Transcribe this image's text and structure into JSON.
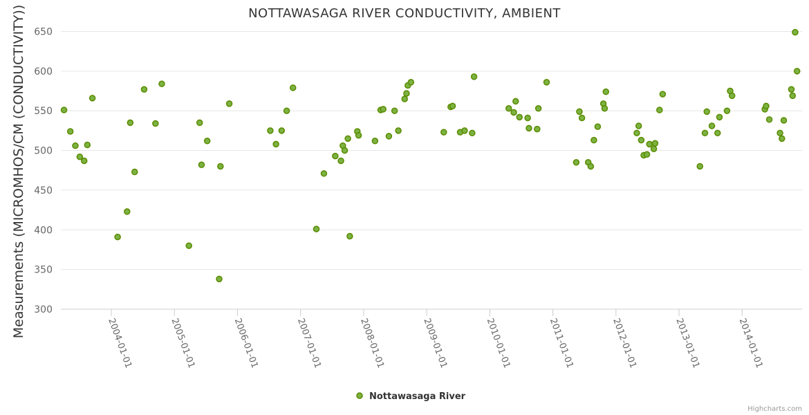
{
  "chart_data": {
    "type": "scatter",
    "title": "NOTTAWASAGA RIVER CONDUCTIVITY, AMBIENT",
    "xlabel": "",
    "ylabel": "Measurements (MICROMHOS/CM (CONDUCTIVITY))",
    "ylim": [
      300,
      660
    ],
    "yticks": [
      300,
      350,
      400,
      450,
      500,
      550,
      600,
      650
    ],
    "xlim": [
      2003.2,
      2014.95
    ],
    "xticks": [
      {
        "label": "2004-01-01",
        "value": 2004
      },
      {
        "label": "2005-01-01",
        "value": 2005
      },
      {
        "label": "2006-01-01",
        "value": 2006
      },
      {
        "label": "2007-01-01",
        "value": 2007
      },
      {
        "label": "2008-01-01",
        "value": 2008
      },
      {
        "label": "2009-01-01",
        "value": 2009
      },
      {
        "label": "2010-01-01",
        "value": 2010
      },
      {
        "label": "2011-01-01",
        "value": 2011
      },
      {
        "label": "2012-01-01",
        "value": 2012
      },
      {
        "label": "2013-01-01",
        "value": 2013
      },
      {
        "label": "2014-01-01",
        "value": 2014
      }
    ],
    "grid": true,
    "legend_position": "bottom-center",
    "series": [
      {
        "name": "Nottawasaga River",
        "color": "#7CB342",
        "stroke": "#5a8a00",
        "points": [
          [
            2003.25,
            551
          ],
          [
            2003.35,
            524
          ],
          [
            2003.43,
            506
          ],
          [
            2003.5,
            492
          ],
          [
            2003.57,
            487
          ],
          [
            2003.62,
            507
          ],
          [
            2003.7,
            566
          ],
          [
            2004.1,
            391
          ],
          [
            2004.25,
            423
          ],
          [
            2004.3,
            535
          ],
          [
            2004.37,
            473
          ],
          [
            2004.52,
            577
          ],
          [
            2004.7,
            534
          ],
          [
            2004.8,
            584
          ],
          [
            2005.23,
            380
          ],
          [
            2005.4,
            535
          ],
          [
            2005.43,
            482
          ],
          [
            2005.52,
            512
          ],
          [
            2005.71,
            338
          ],
          [
            2005.73,
            480
          ],
          [
            2005.87,
            559
          ],
          [
            2006.52,
            525
          ],
          [
            2006.61,
            508
          ],
          [
            2006.7,
            525
          ],
          [
            2006.78,
            550
          ],
          [
            2006.88,
            579
          ],
          [
            2007.25,
            401
          ],
          [
            2007.37,
            471
          ],
          [
            2007.55,
            493
          ],
          [
            2007.64,
            487
          ],
          [
            2007.67,
            506
          ],
          [
            2007.7,
            500
          ],
          [
            2007.75,
            515
          ],
          [
            2007.78,
            392
          ],
          [
            2007.9,
            524
          ],
          [
            2007.92,
            519
          ],
          [
            2008.18,
            512
          ],
          [
            2008.27,
            551
          ],
          [
            2008.31,
            552
          ],
          [
            2008.4,
            518
          ],
          [
            2008.49,
            550
          ],
          [
            2008.55,
            525
          ],
          [
            2008.65,
            565
          ],
          [
            2008.68,
            572
          ],
          [
            2008.7,
            582
          ],
          [
            2008.75,
            586
          ],
          [
            2009.27,
            523
          ],
          [
            2009.38,
            555
          ],
          [
            2009.41,
            556
          ],
          [
            2009.53,
            523
          ],
          [
            2009.6,
            525
          ],
          [
            2009.72,
            522
          ],
          [
            2009.75,
            593
          ],
          [
            2010.3,
            553
          ],
          [
            2010.38,
            548
          ],
          [
            2010.41,
            562
          ],
          [
            2010.47,
            542
          ],
          [
            2010.6,
            541
          ],
          [
            2010.62,
            528
          ],
          [
            2010.75,
            527
          ],
          [
            2010.77,
            553
          ],
          [
            2010.9,
            586
          ],
          [
            2011.37,
            485
          ],
          [
            2011.42,
            549
          ],
          [
            2011.46,
            541
          ],
          [
            2011.56,
            485
          ],
          [
            2011.6,
            480
          ],
          [
            2011.65,
            513
          ],
          [
            2011.71,
            530
          ],
          [
            2011.8,
            559
          ],
          [
            2011.82,
            553
          ],
          [
            2011.84,
            574
          ],
          [
            2012.33,
            522
          ],
          [
            2012.36,
            531
          ],
          [
            2012.4,
            513
          ],
          [
            2012.44,
            494
          ],
          [
            2012.49,
            495
          ],
          [
            2012.53,
            508
          ],
          [
            2012.6,
            502
          ],
          [
            2012.62,
            509
          ],
          [
            2012.69,
            551
          ],
          [
            2012.74,
            571
          ],
          [
            2013.33,
            480
          ],
          [
            2013.41,
            522
          ],
          [
            2013.44,
            549
          ],
          [
            2013.52,
            531
          ],
          [
            2013.61,
            522
          ],
          [
            2013.64,
            542
          ],
          [
            2013.76,
            550
          ],
          [
            2013.81,
            575
          ],
          [
            2013.84,
            569
          ],
          [
            2014.36,
            552
          ],
          [
            2014.38,
            556
          ],
          [
            2014.43,
            539
          ],
          [
            2014.6,
            522
          ],
          [
            2014.63,
            515
          ],
          [
            2014.66,
            538
          ],
          [
            2014.78,
            577
          ],
          [
            2014.8,
            569
          ],
          [
            2014.84,
            649
          ],
          [
            2014.87,
            600
          ]
        ]
      }
    ]
  },
  "credits": "Highcharts.com"
}
